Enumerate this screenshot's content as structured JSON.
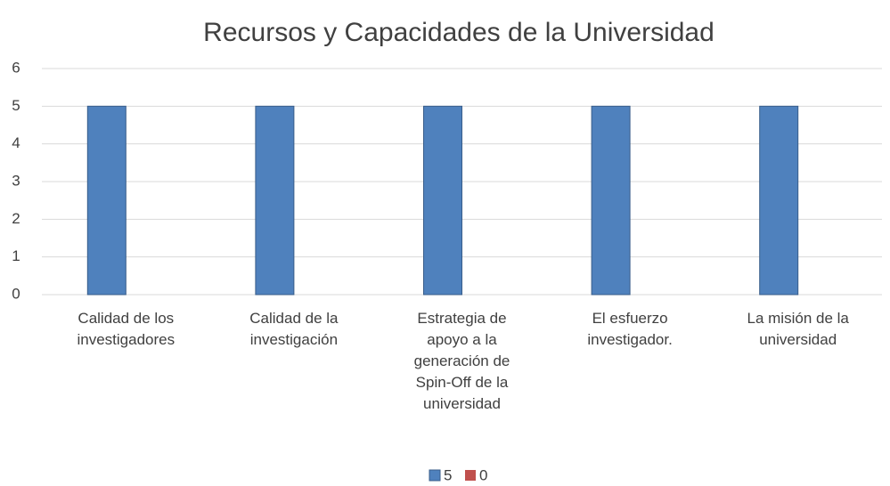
{
  "chart_data": {
    "type": "bar",
    "title": "Recursos y Capacidades de la Universidad",
    "categories": [
      "Calidad de los investigadores",
      "Calidad de la investigación",
      "Estrategia de apoyo a la generación de Spin-Off de la universidad",
      "El esfuerzo investigador.",
      "La misión de la universidad"
    ],
    "series": [
      {
        "name": "5",
        "color": "#4f81bd",
        "values": [
          5,
          5,
          5,
          5,
          5
        ]
      },
      {
        "name": "0",
        "color": "#c0504d",
        "values": [
          0,
          0,
          0,
          0,
          0
        ]
      }
    ],
    "ylim": [
      0,
      6
    ],
    "yticks": [
      0,
      1,
      2,
      3,
      4,
      5,
      6
    ],
    "grid": true,
    "legend": "bottom"
  }
}
